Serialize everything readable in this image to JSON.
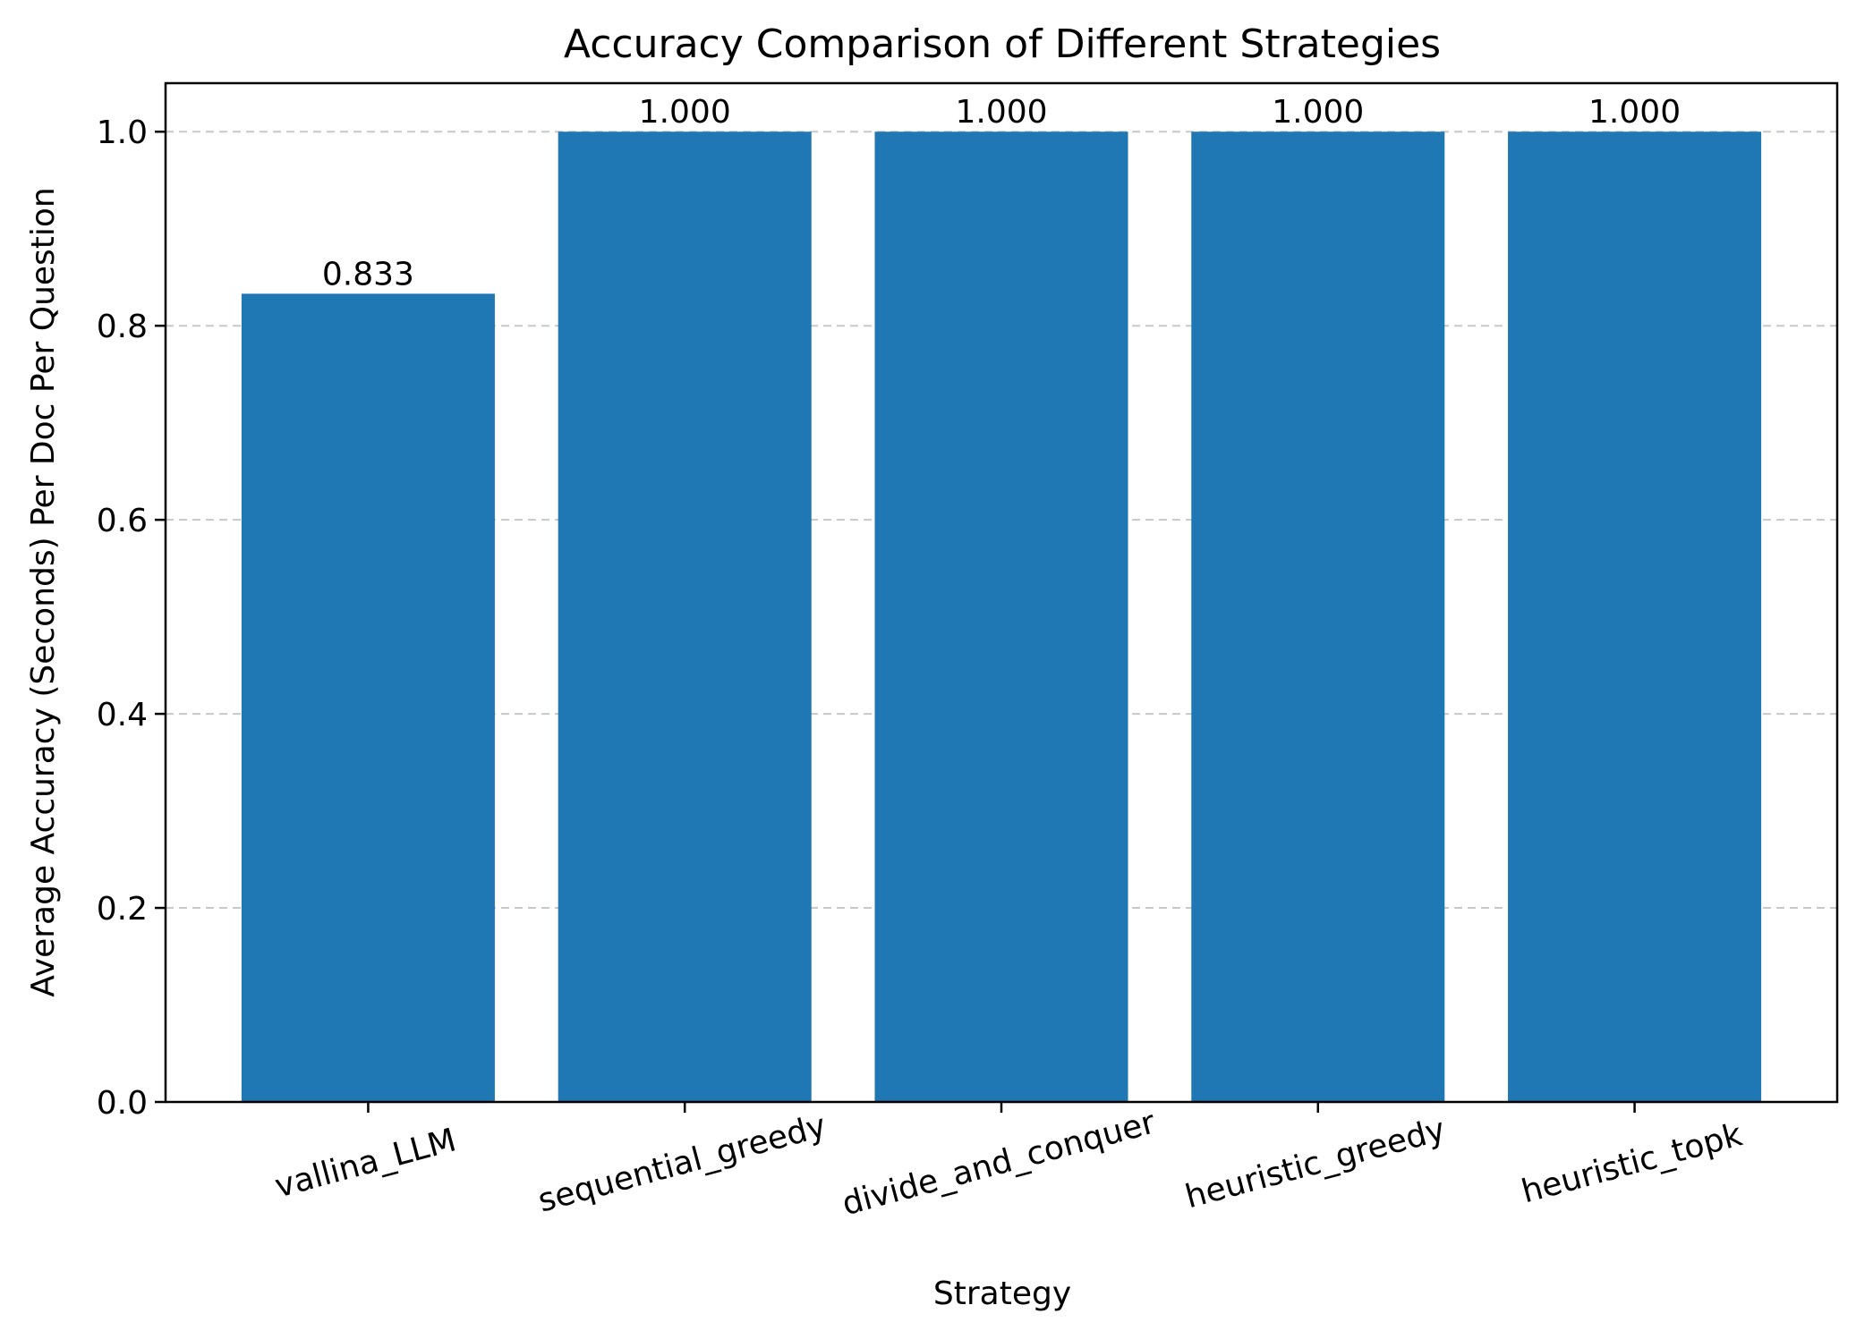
{
  "chart_data": {
    "type": "bar",
    "title": "Accuracy Comparison of Different Strategies",
    "xlabel": "Strategy",
    "ylabel": "Average Accuracy (Seconds) Per Doc Per Question",
    "categories": [
      "vallina_LLM",
      "sequential_greedy",
      "divide_and_conquer",
      "heuristic_greedy",
      "heuristic_topk"
    ],
    "values": [
      0.833,
      1.0,
      1.0,
      1.0,
      1.0
    ],
    "value_labels": [
      "0.833",
      "1.000",
      "1.000",
      "1.000",
      "1.000"
    ],
    "ylim": [
      0,
      1.05
    ],
    "yticks": [
      0.0,
      0.2,
      0.4,
      0.6,
      0.8,
      1.0
    ],
    "ytick_labels": [
      "0.0",
      "0.2",
      "0.4",
      "0.6",
      "0.8",
      "1.0"
    ],
    "grid": "y-dashed",
    "bar_color": "#1f77b4",
    "grid_color": "#c8c8c8"
  }
}
